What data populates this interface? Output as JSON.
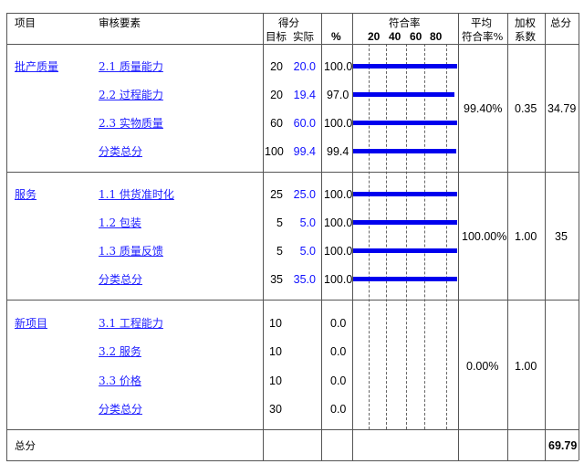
{
  "headers": {
    "item": "项目",
    "element": "审核要素",
    "score": "得分",
    "target": "目标",
    "actual": "实际",
    "percent": "%",
    "rate": "符合率",
    "scale": [
      "20",
      "40",
      "60",
      "80"
    ],
    "avg_line1": "平均",
    "avg_line2": "符合率%",
    "weight_line1": "加权",
    "weight_line2": "系数",
    "total": "总分"
  },
  "sections": [
    {
      "name": "批产质量",
      "rows": [
        {
          "element": "2.1 质量能力",
          "target": "20",
          "actual": "20.0",
          "percent": "100.0",
          "rate": 100
        },
        {
          "element": "2.2 过程能力",
          "target": "20",
          "actual": "19.4",
          "percent": "97.0",
          "rate": 97
        },
        {
          "element": "2.3 实物质量",
          "target": "60",
          "actual": "60.0",
          "percent": "100.0",
          "rate": 100
        },
        {
          "element": "分类总分",
          "target": "100",
          "actual": "99.4",
          "percent": "99.4",
          "rate": 99.4
        }
      ],
      "avg": "99.40%",
      "weight": "0.35",
      "total": "34.79"
    },
    {
      "name": "服务",
      "rows": [
        {
          "element": "1.1 供货准时化",
          "target": "25",
          "actual": "25.0",
          "percent": "100.0",
          "rate": 100
        },
        {
          "element": "1.2 包装",
          "target": "5",
          "actual": "5.0",
          "percent": "100.0",
          "rate": 100
        },
        {
          "element": "1.3 质量反馈",
          "target": "5",
          "actual": "5.0",
          "percent": "100.0",
          "rate": 100
        },
        {
          "element": "分类总分",
          "target": "35",
          "actual": "35.0",
          "percent": "100.0",
          "rate": 100
        }
      ],
      "avg": "100.00%",
      "weight": "1.00",
      "total": "35"
    },
    {
      "name": "新项目",
      "rows": [
        {
          "element": "3.1 工程能力",
          "target": "10",
          "actual": "",
          "percent": "0.0",
          "rate": 0
        },
        {
          "element": "3.2 服务",
          "target": "10",
          "actual": "",
          "percent": "0.0",
          "rate": 0
        },
        {
          "element": "3.3 价格",
          "target": "10",
          "actual": "",
          "percent": "0.0",
          "rate": 0
        },
        {
          "element": "分类总分",
          "target": "30",
          "actual": "",
          "percent": "0.0",
          "rate": 0
        }
      ],
      "avg": "0.00%",
      "weight": "1.00",
      "total": ""
    }
  ],
  "footer": {
    "label": "总分",
    "value": "69.79"
  },
  "colors": {
    "bar": "#0000ee",
    "link": "#2020ff",
    "actual": "#1010ff"
  }
}
